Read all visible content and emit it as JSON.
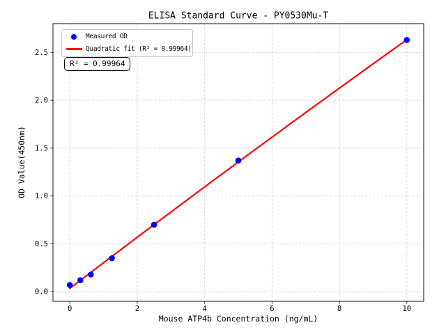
{
  "chart_data": {
    "type": "scatter",
    "title": "ELISA Standard Curve - PY0530Mu-T",
    "xlabel": "Mouse ATP4b Concentration (ng/mL)",
    "ylabel": "OD Value(450nm)",
    "xlim": [
      -0.5,
      10.5
    ],
    "ylim": [
      -0.1,
      2.8
    ],
    "x_tick_labels": [
      "0",
      "2",
      "4",
      "6",
      "8",
      "10"
    ],
    "y_tick_labels": [
      "0.0",
      "0.5",
      "1.0",
      "1.5",
      "2.0",
      "2.5"
    ],
    "grid": true,
    "grid_style": "dashed",
    "legend_position": "upper-left",
    "series": [
      {
        "name": "Measured OD",
        "type": "scatter",
        "color": "#0000ff",
        "x": [
          0,
          0.313,
          0.625,
          1.25,
          2.5,
          5,
          10
        ],
        "y": [
          0.07,
          0.12,
          0.18,
          0.35,
          0.7,
          1.37,
          2.63
        ]
      },
      {
        "name": "Quadratic fit (R² = 0.99964)",
        "type": "line",
        "color": "#ff0000",
        "fit": {
          "a0": 0.035,
          "a1": 0.2685,
          "a2": -0.00087
        },
        "x_range": [
          0,
          10
        ]
      }
    ],
    "annotation": "R² = 0.99964",
    "r_squared": 0.99964
  }
}
